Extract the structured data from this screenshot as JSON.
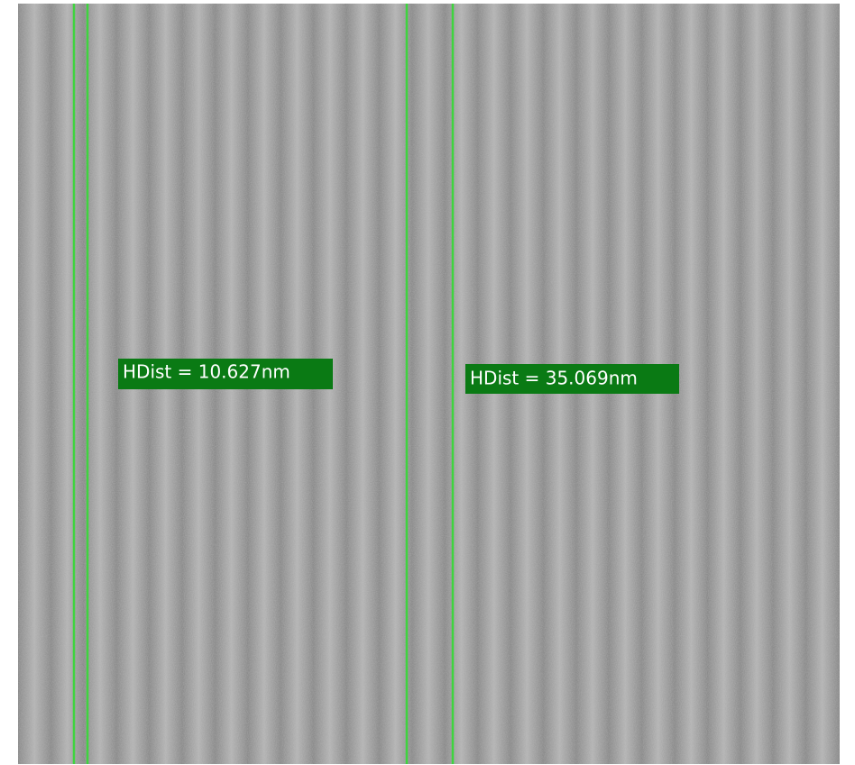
{
  "measurements": [
    {
      "label": "HDist = 10.627nm"
    },
    {
      "label": "HDist = 35.069nm"
    }
  ]
}
